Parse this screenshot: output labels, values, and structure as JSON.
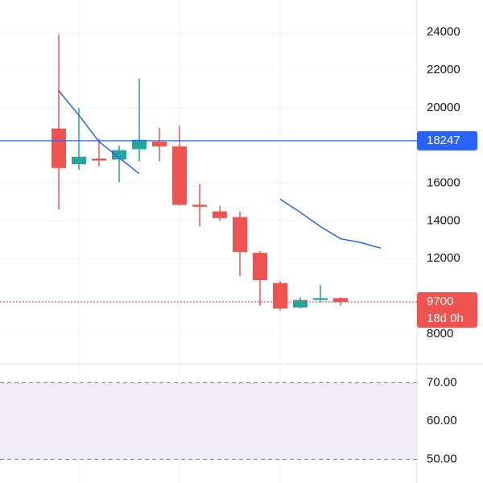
{
  "chart_data": [
    {
      "type": "candlestick",
      "open": [
        18900,
        17000,
        17300,
        17250,
        17800,
        18200,
        17950,
        14850,
        14500,
        14200,
        12300,
        10700,
        9400,
        9800,
        9900
      ],
      "high": [
        23900,
        20000,
        18350,
        18000,
        21550,
        18950,
        19050,
        15950,
        14800,
        14500,
        12400,
        10800,
        9950,
        10600,
        9950
      ],
      "low": [
        14600,
        16700,
        16900,
        16050,
        17150,
        17150,
        14800,
        13700,
        14000,
        11050,
        9500,
        9250,
        9350,
        9650,
        9500
      ],
      "close": [
        16800,
        17400,
        17200,
        17750,
        18300,
        17950,
        14850,
        14750,
        14150,
        12350,
        10850,
        9350,
        9800,
        9900,
        9700
      ],
      "up_color": "#26a69a",
      "down_color": "#ef5350",
      "xlim": [
        -2.92,
        17.8
      ],
      "ylim": [
        6412,
        25716
      ],
      "yticks": [
        8000,
        12000,
        14000,
        16000,
        20000,
        22000,
        24000
      ],
      "grid": true,
      "series": [
        {
          "color": "#2962ff",
          "x": [
            0,
            1,
            2,
            3,
            4
          ],
          "values": [
            20900,
            19600,
            18200,
            17350,
            16500
          ]
        },
        {
          "color": "#2962ff",
          "x": [
            11,
            12,
            13,
            14,
            15,
            16
          ],
          "values": [
            15150,
            14450,
            13700,
            13050,
            12850,
            12550
          ]
        }
      ],
      "price_lines": [
        {
          "value": 18247,
          "color": "#2962ff",
          "style": "solid"
        },
        {
          "value": 9700,
          "countdown": "18d 0h",
          "color": "#ef5350",
          "style": "dotted"
        }
      ]
    },
    {
      "type": "indicator",
      "ylim": [
        43.8,
        74.9
      ],
      "yticks": [
        {
          "value": 50,
          "label": "50.00"
        },
        {
          "value": 60,
          "label": "60.00"
        },
        {
          "value": 70,
          "label": "70.00"
        }
      ],
      "band_color": "#f0edf9"
    }
  ]
}
